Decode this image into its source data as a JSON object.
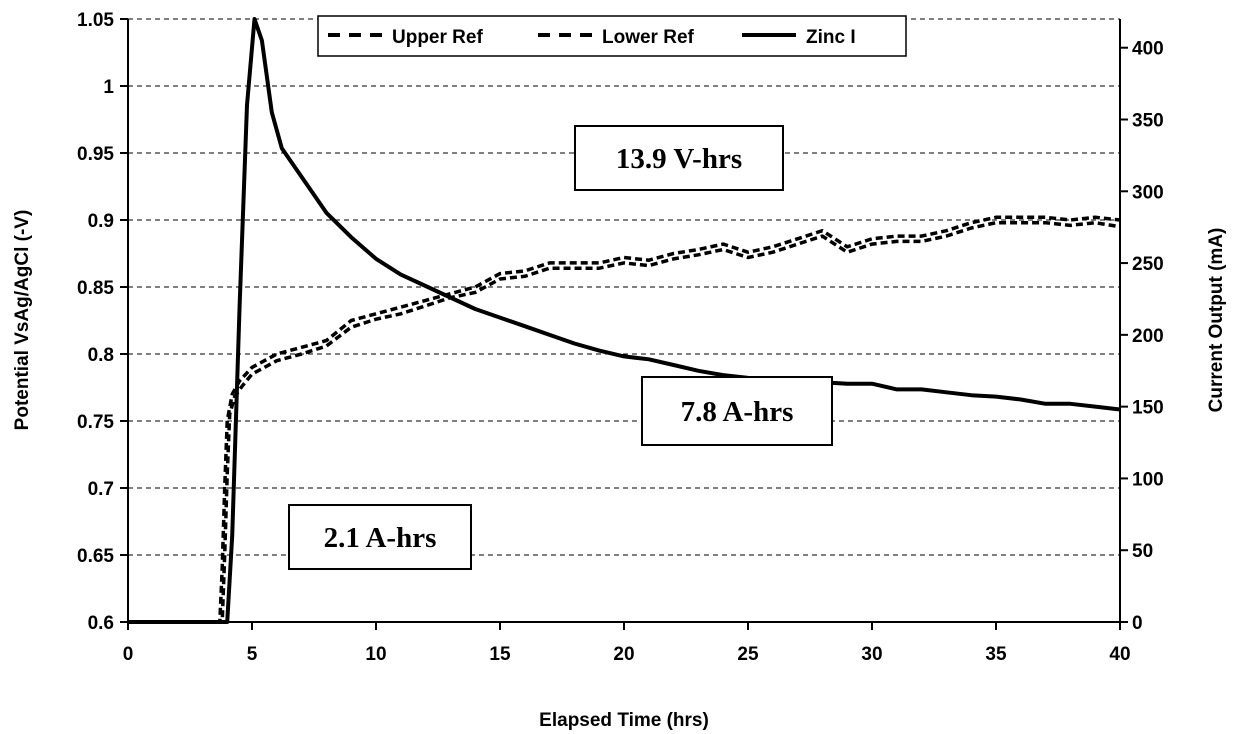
{
  "chart_data": {
    "type": "line",
    "title": "",
    "xlabel": "Elapsed Time (hrs)",
    "ylabel": "Potential VsAg/AgCl (-V)",
    "y2label": "Current Output (mA)",
    "xlim": [
      0,
      40
    ],
    "ylim": [
      0.6,
      1.05
    ],
    "y2lim": [
      0,
      420
    ],
    "x_ticks": [
      "0",
      "5",
      "10",
      "15",
      "20",
      "25",
      "30",
      "35",
      "40"
    ],
    "y_ticks": [
      "0.6",
      "0.65",
      "0.7",
      "0.75",
      "0.8",
      "0.85",
      "0.9",
      "0.95",
      "1",
      "1.05"
    ],
    "y2_ticks": [
      "0",
      "50",
      "100",
      "150",
      "200",
      "250",
      "300",
      "350",
      "400"
    ],
    "grid": "horizontal-dashed",
    "legend_position": "top",
    "series": [
      {
        "name": "Upper Ref",
        "axis": "left",
        "style": "dashed",
        "x": [
          0,
          3.7,
          3.8,
          3.9,
          4.0,
          4.2,
          4.5,
          5,
          5.5,
          6,
          7,
          8,
          9,
          10,
          11,
          12,
          13,
          14,
          15,
          16,
          17,
          18,
          19,
          20,
          21,
          22,
          23,
          24,
          25,
          26,
          27,
          28,
          29,
          30,
          31,
          32,
          33,
          34,
          35,
          36,
          37,
          38,
          39,
          40
        ],
        "y": [
          0.6,
          0.6,
          0.64,
          0.7,
          0.75,
          0.77,
          0.78,
          0.79,
          0.795,
          0.8,
          0.805,
          0.81,
          0.825,
          0.83,
          0.835,
          0.84,
          0.845,
          0.85,
          0.86,
          0.862,
          0.868,
          0.868,
          0.868,
          0.872,
          0.87,
          0.875,
          0.878,
          0.882,
          0.876,
          0.88,
          0.886,
          0.892,
          0.88,
          0.886,
          0.888,
          0.888,
          0.892,
          0.898,
          0.902,
          0.902,
          0.902,
          0.9,
          0.902,
          0.9
        ]
      },
      {
        "name": "Lower Ref",
        "axis": "left",
        "style": "dashed",
        "x": [
          0,
          3.8,
          3.9,
          4.0,
          4.1,
          4.3,
          4.6,
          5,
          5.5,
          6,
          7,
          8,
          9,
          10,
          11,
          12,
          13,
          14,
          15,
          16,
          17,
          18,
          19,
          20,
          21,
          22,
          23,
          24,
          25,
          26,
          27,
          28,
          29,
          30,
          31,
          32,
          33,
          34,
          35,
          36,
          37,
          38,
          39,
          40
        ],
        "y": [
          0.6,
          0.6,
          0.65,
          0.71,
          0.755,
          0.768,
          0.776,
          0.785,
          0.79,
          0.795,
          0.8,
          0.806,
          0.82,
          0.826,
          0.83,
          0.836,
          0.842,
          0.846,
          0.856,
          0.858,
          0.864,
          0.864,
          0.864,
          0.868,
          0.866,
          0.871,
          0.874,
          0.878,
          0.872,
          0.876,
          0.882,
          0.888,
          0.876,
          0.882,
          0.884,
          0.884,
          0.888,
          0.894,
          0.898,
          0.898,
          0.898,
          0.896,
          0.898,
          0.895
        ]
      },
      {
        "name": "Zinc I",
        "axis": "right",
        "style": "solid",
        "x": [
          0,
          4.0,
          4.2,
          4.5,
          4.8,
          5.1,
          5.4,
          5.8,
          6.2,
          7,
          8,
          9,
          10,
          11,
          12,
          13,
          14,
          15,
          16,
          17,
          18,
          19,
          20,
          21,
          22,
          23,
          24,
          25,
          26,
          27,
          28,
          29,
          30,
          31,
          32,
          33,
          34,
          35,
          36,
          37,
          38,
          39,
          40
        ],
        "y": [
          0,
          0,
          60,
          220,
          360,
          420,
          405,
          355,
          330,
          310,
          285,
          268,
          253,
          242,
          234,
          226,
          218,
          212,
          206,
          200,
          194,
          189,
          185,
          183,
          179,
          175,
          172,
          170,
          169,
          168,
          167,
          166,
          166,
          162,
          162,
          160,
          158,
          157,
          155,
          152,
          152,
          150,
          148
        ]
      }
    ],
    "annotations": [
      "13.9 V-hrs",
      "7.8 A-hrs",
      "2.1 A-hrs"
    ]
  }
}
